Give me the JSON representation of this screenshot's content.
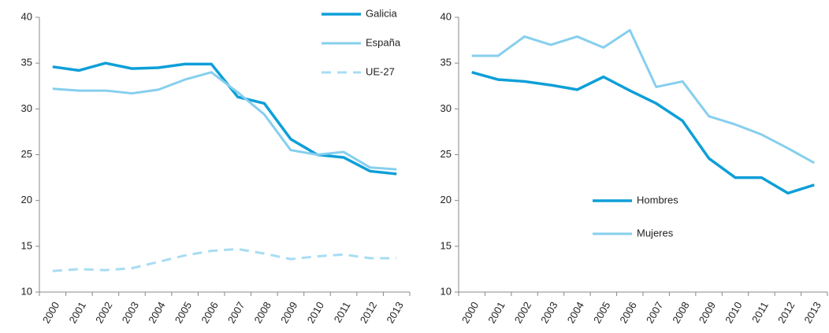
{
  "chart_data": [
    {
      "type": "line",
      "categories": [
        "2000",
        "2001",
        "2002",
        "2003",
        "2004",
        "2005",
        "2006",
        "2007",
        "2008",
        "2009",
        "2010",
        "2011",
        "2012",
        "2013"
      ],
      "series": [
        {
          "name": "Galicia",
          "color": "#0e9fd8",
          "dashed": false,
          "values": [
            34.6,
            34.2,
            35.0,
            34.4,
            34.5,
            34.9,
            34.9,
            31.3,
            30.6,
            26.7,
            25.0,
            24.7,
            23.2,
            22.9
          ]
        },
        {
          "name": "España",
          "color": "#86cfee",
          "dashed": false,
          "values": [
            32.2,
            32.0,
            32.0,
            31.7,
            32.1,
            33.2,
            34.0,
            31.8,
            29.4,
            25.5,
            25.0,
            25.3,
            23.6,
            23.4
          ]
        },
        {
          "name": "UE-27",
          "color": "#a8dcf3",
          "dashed": true,
          "values": [
            12.3,
            12.5,
            12.4,
            12.6,
            13.3,
            14.0,
            14.5,
            14.7,
            14.2,
            13.6,
            13.9,
            14.1,
            13.7,
            13.7
          ]
        }
      ],
      "ylim": [
        10,
        40
      ],
      "yticks": [
        10,
        15,
        20,
        25,
        30,
        35,
        40
      ],
      "grid": false,
      "legend": "upper right"
    },
    {
      "type": "line",
      "categories": [
        "2000",
        "2001",
        "2002",
        "2003",
        "2004",
        "2005",
        "2006",
        "2007",
        "2008",
        "2009",
        "2010",
        "2011",
        "2012",
        "2013"
      ],
      "series": [
        {
          "name": "Hombres",
          "color": "#0e9fd8",
          "dashed": false,
          "values": [
            34.0,
            33.2,
            33.0,
            32.6,
            32.1,
            33.5,
            32.0,
            30.6,
            28.7,
            24.6,
            22.5,
            22.5,
            20.8,
            21.7
          ]
        },
        {
          "name": "Mujeres",
          "color": "#86cfee",
          "dashed": false,
          "values": [
            35.8,
            35.8,
            37.9,
            37.0,
            37.9,
            36.7,
            38.6,
            32.4,
            33.0,
            29.2,
            28.3,
            27.2,
            25.7,
            24.1
          ]
        }
      ],
      "ylim": [
        10,
        40
      ],
      "yticks": [
        10,
        15,
        20,
        25,
        30,
        35,
        40
      ],
      "grid": false,
      "legend": "center"
    }
  ]
}
